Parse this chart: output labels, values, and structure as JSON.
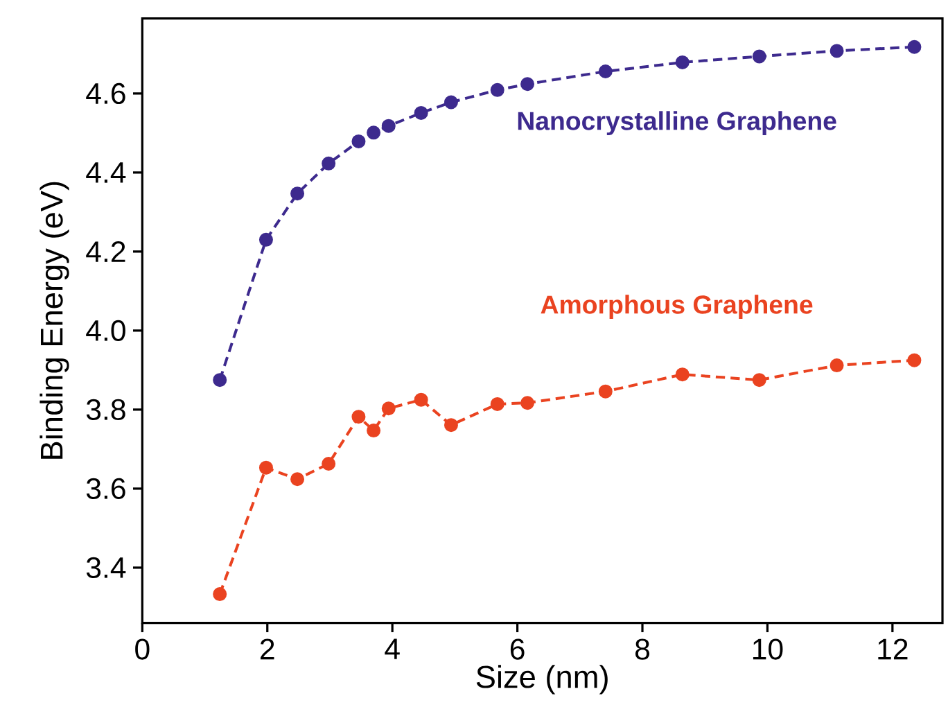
{
  "chart_data": {
    "type": "line",
    "xlabel": "Size (nm)",
    "ylabel": "Binding Energy (eV)",
    "xlim": [
      0,
      12.8
    ],
    "ylim": [
      3.26,
      4.79
    ],
    "xticks": [
      0,
      2,
      4,
      6,
      8,
      10,
      12
    ],
    "yticks": [
      3.4,
      3.6,
      3.8,
      {
        "value": 4.0,
        "label": "4.0"
      },
      4.2,
      4.4,
      4.6
    ],
    "marker": "circle",
    "line_style": "dashed",
    "grid": false,
    "legend": false,
    "x": [
      1.24,
      1.98,
      2.48,
      2.98,
      3.46,
      3.7,
      3.94,
      4.46,
      4.94,
      5.68,
      6.16,
      7.41,
      8.64,
      9.87,
      11.11,
      12.35
    ],
    "series": [
      {
        "name": "Nanocrystalline Graphene",
        "color": "#3d2a8e",
        "values": [
          3.875,
          4.23,
          4.347,
          4.423,
          4.479,
          4.501,
          4.518,
          4.551,
          4.578,
          4.609,
          4.624,
          4.656,
          4.679,
          4.694,
          4.708,
          4.718
        ]
      },
      {
        "name": "Amorphous Graphene",
        "color": "#ea4320",
        "values": [
          3.333,
          3.653,
          3.624,
          3.663,
          3.782,
          3.747,
          3.803,
          3.825,
          3.761,
          3.814,
          3.817,
          3.846,
          3.889,
          3.875,
          3.912,
          3.925
        ]
      }
    ]
  }
}
